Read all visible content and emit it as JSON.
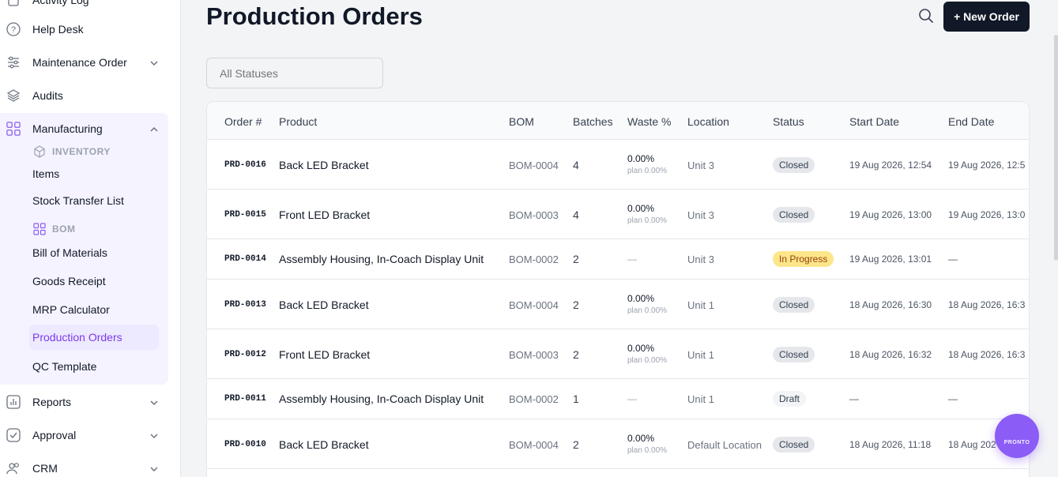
{
  "sidebar": {
    "items": [
      {
        "label": "Activity Log",
        "icon": "log-icon"
      },
      {
        "label": "Help Desk",
        "icon": "help-circle-icon"
      },
      {
        "label": "Maintenance Order",
        "icon": "sliders-icon"
      },
      {
        "label": "Audits",
        "icon": "layers-icon"
      },
      {
        "label": "Manufacturing",
        "icon": "grid-icon"
      },
      {
        "label": "Reports",
        "icon": "chart-icon"
      },
      {
        "label": "Approval",
        "icon": "check-icon"
      },
      {
        "label": "CRM",
        "icon": "users-icon"
      }
    ],
    "inventory_header": "INVENTORY",
    "bom_header": "BOM",
    "sub_items": [
      "Items",
      "Stock Transfer List",
      "Bill of Materials",
      "Goods Receipt",
      "MRP Calculator",
      "Production Orders",
      "QC Template"
    ],
    "active_item": "Production Orders"
  },
  "header": {
    "title": "Production Orders",
    "new_button": "+ New Order"
  },
  "filter": {
    "status_placeholder": "All Statuses"
  },
  "table": {
    "columns": [
      "Order #",
      "Product",
      "BOM",
      "Batches",
      "Waste %",
      "Location",
      "Status",
      "Start Date",
      "End Date"
    ],
    "rows": [
      {
        "order": "PRD-0016",
        "product": "Back LED Bracket",
        "bom": "BOM-0004",
        "batches": "4",
        "waste": "0.00%",
        "plan": "plan 0.00%",
        "location": "Unit 3",
        "status": "Closed",
        "start": "19 Aug 2026, 12:54",
        "end": "19 Aug 2026, 12:5"
      },
      {
        "order": "PRD-0015",
        "product": "Front LED Bracket",
        "bom": "BOM-0003",
        "batches": "4",
        "waste": "0.00%",
        "plan": "plan 0.00%",
        "location": "Unit 3",
        "status": "Closed",
        "start": "19 Aug 2026, 13:00",
        "end": "19 Aug 2026, 13:0"
      },
      {
        "order": "PRD-0014",
        "product": "Assembly Housing, In-Coach Display Unit",
        "bom": "BOM-0002",
        "batches": "2",
        "waste": "—",
        "plan": "",
        "location": "Unit 3",
        "status": "In Progress",
        "start": "19 Aug 2026, 13:01",
        "end": "—"
      },
      {
        "order": "PRD-0013",
        "product": "Back LED Bracket",
        "bom": "BOM-0004",
        "batches": "2",
        "waste": "0.00%",
        "plan": "plan 0.00%",
        "location": "Unit 1",
        "status": "Closed",
        "start": "18 Aug 2026, 16:30",
        "end": "18 Aug 2026, 16:3"
      },
      {
        "order": "PRD-0012",
        "product": "Front LED Bracket",
        "bom": "BOM-0003",
        "batches": "2",
        "waste": "0.00%",
        "plan": "plan 0.00%",
        "location": "Unit 1",
        "status": "Closed",
        "start": "18 Aug 2026, 16:32",
        "end": "18 Aug 2026, 16:3"
      },
      {
        "order": "PRD-0011",
        "product": "Assembly Housing, In-Coach Display Unit",
        "bom": "BOM-0002",
        "batches": "1",
        "waste": "—",
        "plan": "",
        "location": "Unit 1",
        "status": "Draft",
        "start": "—",
        "end": "—"
      },
      {
        "order": "PRD-0010",
        "product": "Back LED Bracket",
        "bom": "BOM-0004",
        "batches": "2",
        "waste": "0.00%",
        "plan": "plan 0.00%",
        "location": "Default Location",
        "status": "Closed",
        "start": "18 Aug 2026, 11:18",
        "end": "18 Aug 202"
      }
    ]
  },
  "fab_label": "PRONTO",
  "colors": {
    "accent": "#7c3aed",
    "fab": "#8b5cf6",
    "in_progress": "#fde68a"
  }
}
